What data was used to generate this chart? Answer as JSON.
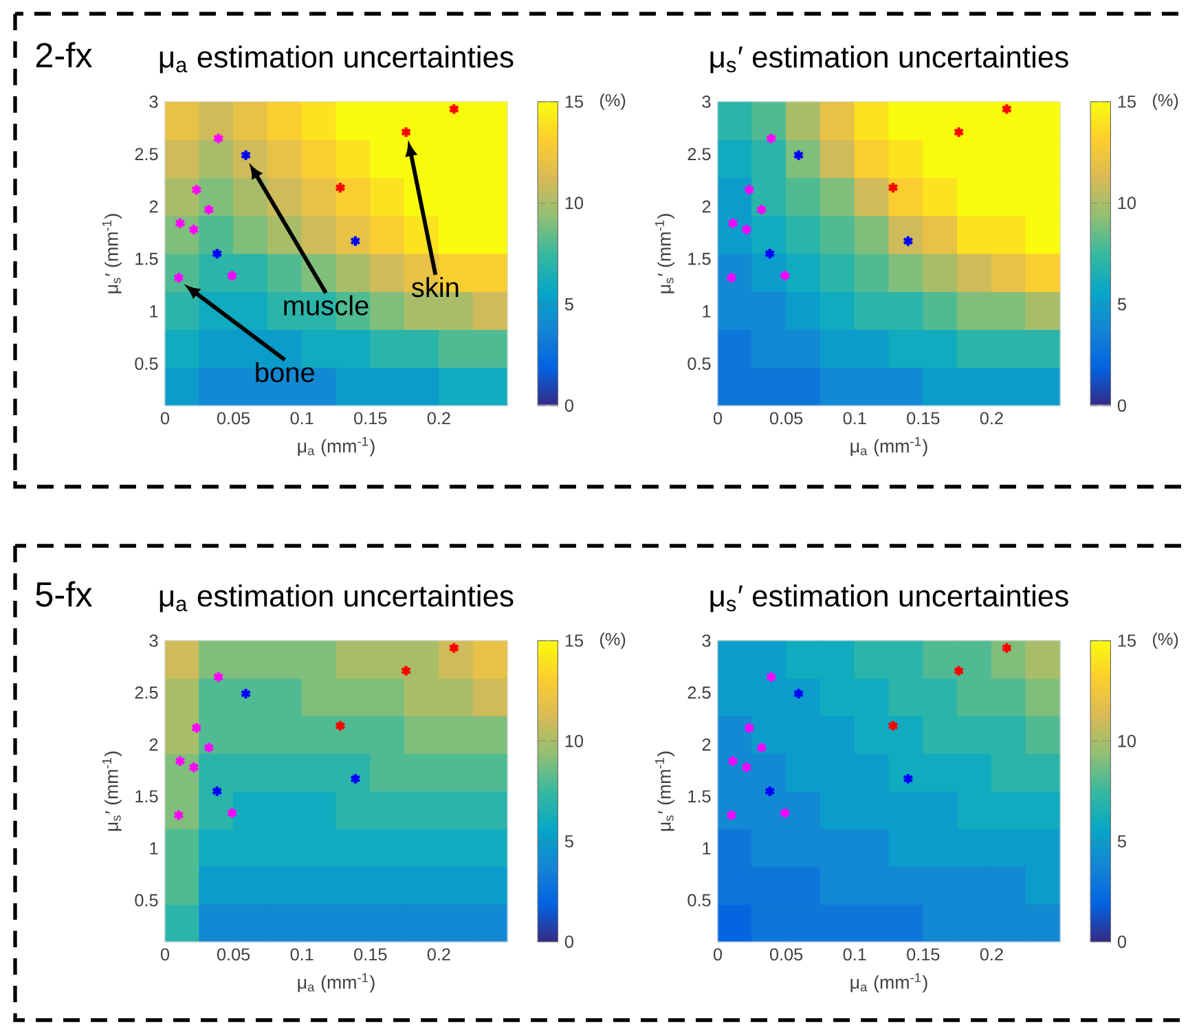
{
  "chart_data": [
    {
      "type": "heatmap",
      "title": "μ$_{a}$ estimation uncertainties",
      "xlabel": "μ$_{a}$ (mm$^{-1}$)",
      "ylabel": "μ$_{s}$′ (mm$^{-1}$)",
      "clabel": "(%)",
      "annotations": [
        "2-fx",
        "bone",
        "muscle",
        "skin"
      ],
      "x": [
        0.0125,
        0.0375,
        0.0625,
        0.0875,
        0.1125,
        0.1375,
        0.1625,
        0.1875,
        0.2125,
        0.2375
      ],
      "y": [
        2.81875,
        2.45625,
        2.09375,
        1.73125,
        1.36875,
        1.00625,
        0.64375,
        0.28125
      ],
      "xlim": [
        0,
        0.25
      ],
      "ylim": [
        0.1,
        3
      ],
      "xticks": [
        0,
        0.05,
        0.1,
        0.15,
        0.2
      ],
      "yticks": [
        0.5,
        1,
        1.5,
        2,
        2.5,
        3
      ],
      "clim": [
        0,
        15
      ],
      "cticks": [
        0,
        5,
        10,
        15
      ],
      "cells": [
        [
          12,
          11,
          12,
          13,
          14,
          15,
          15,
          15,
          15,
          15
        ],
        [
          11,
          10,
          11,
          12,
          13,
          14,
          15,
          15,
          15,
          15
        ],
        [
          10,
          9,
          10,
          11,
          12,
          13,
          14,
          15,
          15,
          15
        ],
        [
          9,
          8,
          9,
          10,
          11,
          12,
          13,
          14,
          15,
          15
        ],
        [
          8,
          7,
          7,
          8,
          9,
          10,
          11,
          12,
          13,
          13
        ],
        [
          7,
          6,
          6,
          7,
          7,
          8,
          9,
          10,
          10,
          11
        ],
        [
          6,
          5,
          5,
          5,
          6,
          6,
          7,
          7,
          8,
          8
        ],
        [
          5,
          4,
          4,
          4,
          4,
          5,
          5,
          5,
          6,
          6
        ]
      ],
      "marker": "cross",
      "series": [
        {
          "type": "scatter",
          "color": "#ff00ff",
          "x": [
            0.01,
            0.011,
            0.021,
            0.023,
            0.032,
            0.039,
            0.049
          ],
          "values": [
            1.32,
            1.84,
            1.78,
            2.16,
            1.97,
            2.65,
            1.34
          ]
        },
        {
          "type": "scatter",
          "color": "#0000ff",
          "x": [
            0.038,
            0.059,
            0.139
          ],
          "values": [
            1.55,
            2.49,
            1.67
          ]
        },
        {
          "type": "scatter",
          "color": "#ff0000",
          "x": [
            0.128,
            0.176,
            0.211
          ],
          "values": [
            2.18,
            2.71,
            2.93
          ]
        }
      ]
    },
    {
      "type": "heatmap",
      "title": "μ$_{s}$′ estimation uncertainties",
      "xlabel": "μ$_{a}$ (mm$^{-1}$)",
      "ylabel": "μ$_{s}$′ (mm$^{-1}$)",
      "clabel": "(%)",
      "x": [
        0.0125,
        0.0375,
        0.0625,
        0.0875,
        0.1125,
        0.1375,
        0.1625,
        0.1875,
        0.2125,
        0.2375
      ],
      "y": [
        2.81875,
        2.45625,
        2.09375,
        1.73125,
        1.36875,
        1.00625,
        0.64375,
        0.28125
      ],
      "xlim": [
        0,
        0.25
      ],
      "ylim": [
        0.1,
        3
      ],
      "xticks": [
        0,
        0.05,
        0.1,
        0.15,
        0.2
      ],
      "yticks": [
        0.5,
        1,
        1.5,
        2,
        2.5,
        3
      ],
      "clim": [
        0,
        15
      ],
      "cticks": [
        0,
        5,
        10,
        15
      ],
      "cells": [
        [
          7,
          8,
          10,
          12,
          14,
          15,
          15,
          15,
          15,
          15
        ],
        [
          6,
          7,
          9,
          11,
          13,
          14,
          15,
          15,
          15,
          15
        ],
        [
          5,
          7,
          8,
          9,
          11,
          13,
          14,
          15,
          15,
          15
        ],
        [
          5,
          6,
          7,
          8,
          9,
          11,
          12,
          14,
          14,
          15
        ],
        [
          4,
          5,
          6,
          7,
          8,
          9,
          10,
          11,
          12,
          13
        ],
        [
          4,
          4,
          5,
          6,
          7,
          7,
          8,
          9,
          9,
          10
        ],
        [
          3,
          4,
          4,
          5,
          5,
          6,
          6,
          7,
          7,
          7
        ],
        [
          3,
          3,
          3,
          4,
          4,
          4,
          5,
          5,
          5,
          5
        ]
      ],
      "marker": "cross",
      "series": [
        {
          "type": "scatter",
          "color": "#ff00ff",
          "x": [
            0.01,
            0.011,
            0.021,
            0.023,
            0.032,
            0.039,
            0.049
          ],
          "values": [
            1.32,
            1.84,
            1.78,
            2.16,
            1.97,
            2.65,
            1.34
          ]
        },
        {
          "type": "scatter",
          "color": "#0000ff",
          "x": [
            0.038,
            0.059,
            0.139
          ],
          "values": [
            1.55,
            2.49,
            1.67
          ]
        },
        {
          "type": "scatter",
          "color": "#ff0000",
          "x": [
            0.128,
            0.176,
            0.211
          ],
          "values": [
            2.18,
            2.71,
            2.93
          ]
        }
      ]
    },
    {
      "type": "heatmap",
      "title": "μ$_{a}$ estimation uncertainties",
      "xlabel": "μ$_{a}$ (mm$^{-1}$)",
      "ylabel": "μ$_{s}$′ (mm$^{-1}$)",
      "clabel": "(%)",
      "annotations": [
        "5-fx"
      ],
      "x": [
        0.0125,
        0.0375,
        0.0625,
        0.0875,
        0.1125,
        0.1375,
        0.1625,
        0.1875,
        0.2125,
        0.2375
      ],
      "y": [
        2.81875,
        2.45625,
        2.09375,
        1.73125,
        1.36875,
        1.00625,
        0.64375,
        0.28125
      ],
      "xlim": [
        0,
        0.25
      ],
      "ylim": [
        0.1,
        3
      ],
      "xticks": [
        0,
        0.05,
        0.1,
        0.15,
        0.2
      ],
      "yticks": [
        0.5,
        1,
        1.5,
        2,
        2.5,
        3
      ],
      "clim": [
        0,
        15
      ],
      "cticks": [
        0,
        5,
        10,
        15
      ],
      "cells": [
        [
          11,
          9,
          9,
          9,
          9,
          10,
          10,
          10,
          11,
          12
        ],
        [
          10,
          8,
          8,
          8,
          9,
          9,
          9,
          10,
          10,
          11
        ],
        [
          10,
          8,
          8,
          8,
          8,
          8,
          8,
          9,
          9,
          9
        ],
        [
          9,
          7,
          7,
          7,
          7,
          7,
          8,
          8,
          8,
          8
        ],
        [
          9,
          7,
          6,
          6,
          6,
          7,
          7,
          7,
          7,
          7
        ],
        [
          8,
          6,
          6,
          6,
          6,
          6,
          6,
          6,
          6,
          6
        ],
        [
          8,
          5,
          5,
          5,
          5,
          5,
          5,
          5,
          5,
          5
        ],
        [
          7,
          4,
          4,
          4,
          4,
          4,
          4,
          4,
          4,
          4
        ]
      ],
      "marker": "cross",
      "series": [
        {
          "type": "scatter",
          "color": "#ff00ff",
          "x": [
            0.01,
            0.011,
            0.021,
            0.023,
            0.032,
            0.039,
            0.049
          ],
          "values": [
            1.32,
            1.84,
            1.78,
            2.16,
            1.97,
            2.65,
            1.34
          ]
        },
        {
          "type": "scatter",
          "color": "#0000ff",
          "x": [
            0.038,
            0.059,
            0.139
          ],
          "values": [
            1.55,
            2.49,
            1.67
          ]
        },
        {
          "type": "scatter",
          "color": "#ff0000",
          "x": [
            0.128,
            0.176,
            0.211
          ],
          "values": [
            2.18,
            2.71,
            2.93
          ]
        }
      ]
    },
    {
      "type": "heatmap",
      "title": "μ$_{s}$′ estimation uncertainties",
      "xlabel": "μ$_{a}$ (mm$^{-1}$)",
      "ylabel": "μ$_{s}$′ (mm$^{-1}$)",
      "clabel": "(%)",
      "x": [
        0.0125,
        0.0375,
        0.0625,
        0.0875,
        0.1125,
        0.1375,
        0.1625,
        0.1875,
        0.2125,
        0.2375
      ],
      "y": [
        2.81875,
        2.45625,
        2.09375,
        1.73125,
        1.36875,
        1.00625,
        0.64375,
        0.28125
      ],
      "xlim": [
        0,
        0.25
      ],
      "ylim": [
        0.1,
        3
      ],
      "xticks": [
        0,
        0.05,
        0.1,
        0.15,
        0.2
      ],
      "yticks": [
        0.5,
        1,
        1.5,
        2,
        2.5,
        3
      ],
      "clim": [
        0,
        15
      ],
      "cticks": [
        0,
        5,
        10,
        15
      ],
      "cells": [
        [
          5,
          5,
          6,
          6,
          7,
          7,
          8,
          8,
          9,
          10
        ],
        [
          5,
          5,
          5,
          6,
          6,
          7,
          7,
          8,
          8,
          9
        ],
        [
          4,
          5,
          5,
          5,
          6,
          6,
          7,
          7,
          7,
          8
        ],
        [
          4,
          4,
          5,
          5,
          5,
          6,
          6,
          6,
          7,
          7
        ],
        [
          4,
          4,
          4,
          5,
          5,
          5,
          5,
          6,
          6,
          6
        ],
        [
          3,
          4,
          4,
          4,
          4,
          5,
          5,
          5,
          5,
          5
        ],
        [
          3,
          3,
          3,
          4,
          4,
          4,
          4,
          4,
          4,
          5
        ],
        [
          2,
          3,
          3,
          3,
          3,
          3,
          4,
          4,
          4,
          4
        ]
      ],
      "marker": "cross",
      "series": [
        {
          "type": "scatter",
          "color": "#ff00ff",
          "x": [
            0.01,
            0.011,
            0.021,
            0.023,
            0.032,
            0.039,
            0.049
          ],
          "values": [
            1.32,
            1.84,
            1.78,
            2.16,
            1.97,
            2.65,
            1.34
          ]
        },
        {
          "type": "scatter",
          "color": "#0000ff",
          "x": [
            0.038,
            0.059,
            0.139
          ],
          "values": [
            1.55,
            2.49,
            1.67
          ]
        },
        {
          "type": "scatter",
          "color": "#ff0000",
          "x": [
            0.128,
            0.176,
            0.211
          ],
          "values": [
            2.18,
            2.71,
            2.93
          ]
        }
      ]
    }
  ]
}
